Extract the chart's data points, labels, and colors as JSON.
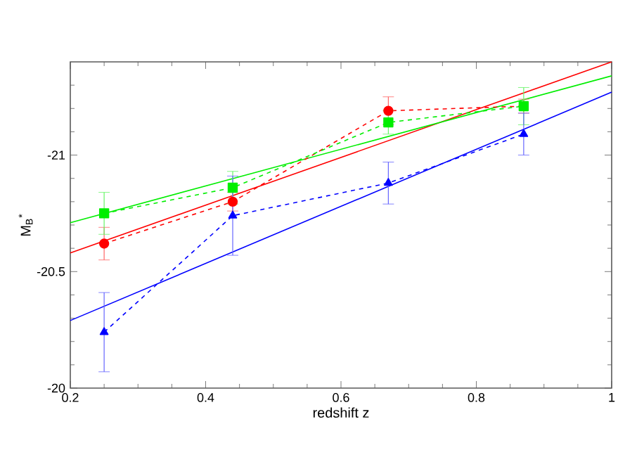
{
  "chart_data": {
    "type": "line",
    "xlabel": "redshift z",
    "ylabel": "M$_{B}$$^{*}$",
    "xlim": [
      0.2,
      1
    ],
    "ylim": [
      -20,
      -21.4
    ],
    "xticks": [
      0.2,
      {
        "value": 0.25,
        "label": null
      },
      {
        "value": 0.3,
        "label": null
      },
      {
        "value": 0.35,
        "label": null
      },
      0.4,
      {
        "value": 0.45,
        "label": null
      },
      {
        "value": 0.5,
        "label": null
      },
      {
        "value": 0.55,
        "label": null
      },
      0.6,
      {
        "value": 0.65,
        "label": null
      },
      {
        "value": 0.7,
        "label": null
      },
      {
        "value": 0.75,
        "label": null
      },
      0.8,
      {
        "value": 0.85,
        "label": null
      },
      {
        "value": 0.9,
        "label": null
      },
      {
        "value": 0.95,
        "label": null
      },
      1
    ],
    "yticks": [
      -20,
      {
        "value": -20.1,
        "label": null
      },
      {
        "value": -20.2,
        "label": null
      },
      {
        "value": -20.3,
        "label": null
      },
      {
        "value": -20.4,
        "label": null
      },
      -20.5,
      {
        "value": -20.6,
        "label": null
      },
      {
        "value": -20.7,
        "label": null
      },
      {
        "value": -20.8,
        "label": null
      },
      {
        "value": -20.9,
        "label": null
      },
      -21,
      {
        "value": -21.1,
        "label": null
      },
      {
        "value": -21.2,
        "label": null
      },
      {
        "value": -21.3,
        "label": null
      }
    ],
    "series": [
      {
        "color": "#ff0000",
        "marker": "none",
        "line_style": "solid",
        "x": [
          0.2,
          1
        ],
        "values": [
          -20.58,
          -21.4
        ]
      },
      {
        "color": "#00ee00",
        "marker": "none",
        "line_style": "solid",
        "x": [
          0.2,
          1
        ],
        "values": [
          -20.71,
          -21.34
        ]
      },
      {
        "color": "#0000ff",
        "marker": "none",
        "line_style": "solid",
        "x": [
          0.2,
          1
        ],
        "values": [
          -20.29,
          -21.27
        ]
      },
      {
        "color": "#ff0000",
        "marker": "circle",
        "line_style": "dashed",
        "x": [
          0.25,
          0.44,
          0.67,
          0.87
        ],
        "values": [
          -20.62,
          -20.8,
          -21.19,
          -21.21
        ],
        "errors": [
          0.07,
          0.04,
          0.06,
          0.03
        ]
      },
      {
        "color": "#00ee00",
        "marker": "square",
        "line_style": "dashed",
        "x": [
          0.25,
          0.44,
          0.67,
          0.87
        ],
        "values": [
          -20.75,
          -20.86,
          -21.14,
          -21.21
        ],
        "errors": [
          0.09,
          0.07,
          0.05,
          0.08
        ]
      },
      {
        "color": "#0000ff",
        "marker": "triangle",
        "line_style": "dashed",
        "x": [
          0.25,
          0.44,
          0.67,
          0.87
        ],
        "values": [
          -20.24,
          -20.74,
          -20.88,
          -21.09
        ],
        "errors": [
          0.17,
          0.17,
          0.09,
          0.09
        ]
      }
    ]
  }
}
